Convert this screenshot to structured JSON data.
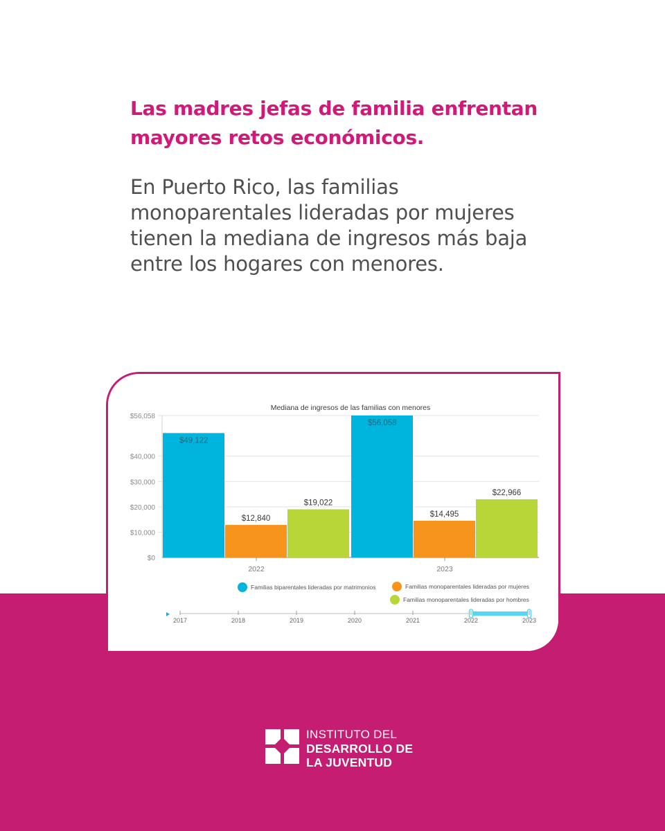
{
  "colors": {
    "accent": "#d1197a",
    "band": "#c41d72",
    "body_text": "#4f4f4f",
    "series": [
      "#00b5dd",
      "#f7941d",
      "#b8d638"
    ]
  },
  "headline": {
    "line1": "Las madres jefas de familia enfrentan",
    "line2": "mayores retos económicos."
  },
  "body": {
    "line1": "En Puerto Rico, las familias",
    "line2": "monoparentales lideradas por mujeres",
    "line3": "tienen la mediana de ingresos más baja",
    "line4": "entre los hogares con menores."
  },
  "chart_data": {
    "type": "bar",
    "title": "Mediana de ingresos de las familias con menores",
    "categories": [
      "2022",
      "2023"
    ],
    "series": [
      {
        "name": "Familias biparentales lideradas por matrimonios",
        "values": [
          49122,
          56058
        ],
        "labels": [
          "$49,122",
          "$56,058"
        ]
      },
      {
        "name": "Familias monoparentales lideradas por mujeres",
        "values": [
          12840,
          14495
        ],
        "labels": [
          "$12,840",
          "$14,495"
        ]
      },
      {
        "name": "Familias monoparentales lideradas por hombres",
        "values": [
          19022,
          22966
        ],
        "labels": [
          "$19,022",
          "$22,966"
        ]
      }
    ],
    "ylim": [
      0,
      56058
    ],
    "yticks": [
      0,
      10000,
      20000,
      30000,
      40000,
      56058
    ],
    "ytick_labels": [
      "$0",
      "$10,000",
      "$20,000",
      "$30,000",
      "$40,000",
      "$56,058"
    ],
    "grid": true,
    "legend_position": "bottom",
    "timeline": {
      "years": [
        "2017",
        "2018",
        "2019",
        "2020",
        "2021",
        "2022",
        "2023"
      ],
      "selected": [
        "2022",
        "2023"
      ],
      "accent": "#55d6f2"
    }
  },
  "logo": {
    "line1": "INSTITUTO DEL",
    "line2": "DESARROLLO DE",
    "line3": "LA JUVENTUD"
  }
}
